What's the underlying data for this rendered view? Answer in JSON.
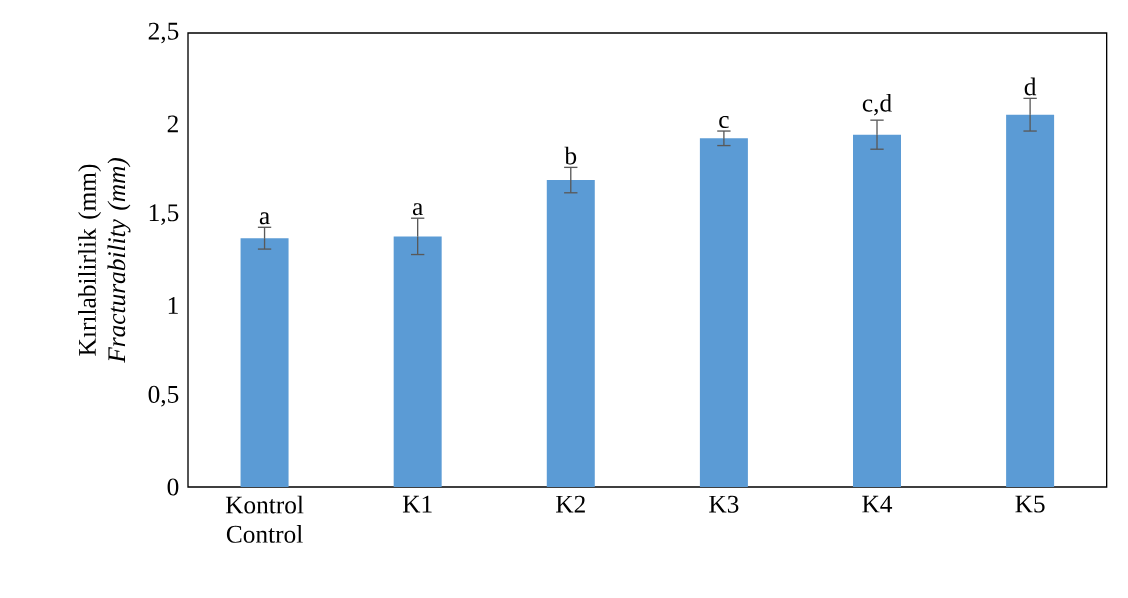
{
  "chart_data": {
    "type": "bar",
    "ylabel": "Kırılabilirlik (mm) *Fracturability (mm)*",
    "categories": [
      "Kontrol Control",
      "K1",
      "K2",
      "K3",
      "K4",
      "K5"
    ],
    "values": [
      1.37,
      1.38,
      1.69,
      1.92,
      1.94,
      2.05
    ],
    "errors": [
      0.06,
      0.1,
      0.07,
      0.04,
      0.08,
      0.09
    ],
    "color": "#5b9bd5",
    "ylim": [
      0,
      2.5
    ],
    "yticks": [
      0,
      {
        "value": 0.5,
        "label": "0,5"
      },
      1,
      {
        "value": 1.5,
        "label": "1,5"
      },
      2,
      {
        "value": 2.5,
        "label": "2,5"
      }
    ],
    "grid": false,
    "annotations": [
      {
        "text": "a",
        "x": "Kontrol Control",
        "y": 1.43
      },
      {
        "text": "a",
        "x": "K1",
        "y": 1.48
      },
      {
        "text": "b",
        "x": "K2",
        "y": 1.76
      },
      {
        "text": "c",
        "x": "K3",
        "y": 1.96
      },
      {
        "text": "c,d",
        "x": "K4",
        "y": 2.03
      },
      {
        "text": "d",
        "x": "K5",
        "y": 2.14
      }
    ]
  }
}
